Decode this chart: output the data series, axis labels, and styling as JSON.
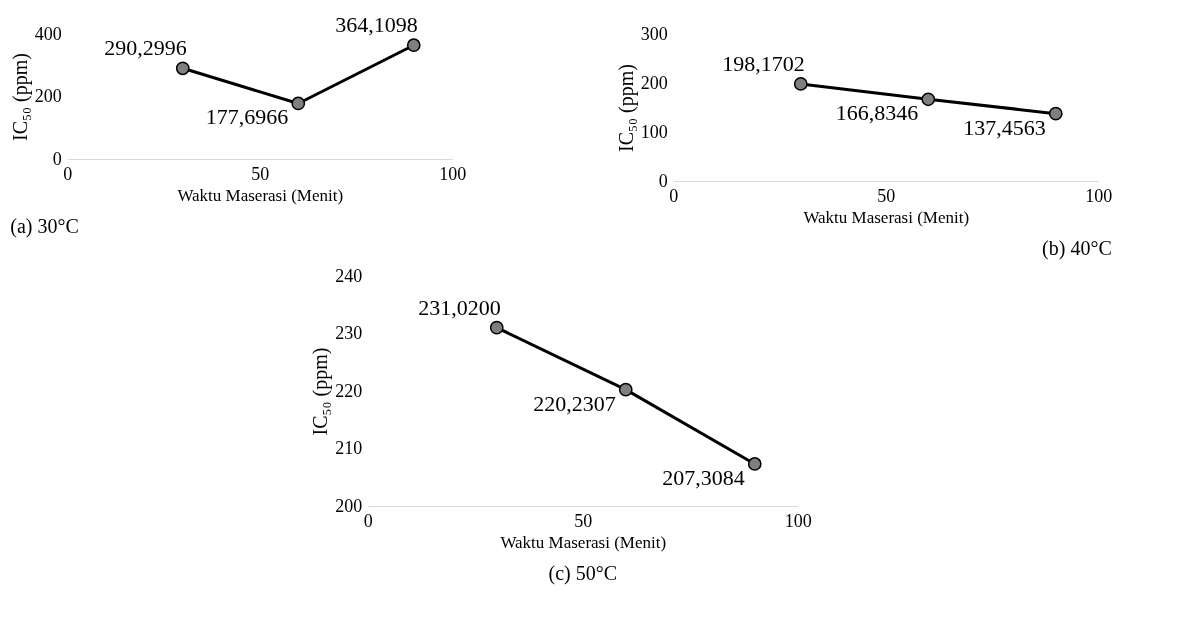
{
  "chart_data": [
    {
      "type": "line",
      "title": "(a)  30°C",
      "xlabel": "Waktu Maserasi (Menit)",
      "ylabel": "IC₅₀ (ppm)",
      "x": [
        30,
        60,
        90
      ],
      "series": [
        {
          "color": "#000000",
          "values": [
            290.2996,
            177.6966,
            364.1098
          ],
          "value_labels": [
            "290,2996",
            "177,6966",
            "364,1098"
          ]
        }
      ],
      "xlim": [
        0,
        100
      ],
      "xticks": [
        0,
        50,
        100
      ],
      "ylim": [
        0,
        400
      ],
      "yticks": [
        0,
        200,
        400
      ],
      "marker": "circle",
      "grid": false,
      "legend": false
    },
    {
      "type": "line",
      "title": "(b) 40°C",
      "xlabel": "Waktu Maserasi (Menit)",
      "ylabel": "IC₅₀ (ppm)",
      "x": [
        30,
        60,
        90
      ],
      "series": [
        {
          "color": "#000000",
          "values": [
            198.1702,
            166.8346,
            137.4563
          ],
          "value_labels": [
            "198,1702",
            "166,8346",
            "137,4563"
          ]
        }
      ],
      "xlim": [
        0,
        100
      ],
      "xticks": [
        0,
        50,
        100
      ],
      "ylim": [
        0,
        300
      ],
      "yticks": [
        0,
        100,
        200,
        300
      ],
      "marker": "circle",
      "grid": false,
      "legend": false
    },
    {
      "type": "line",
      "title": "(c) 50°C",
      "xlabel": "Waktu Maserasi (Menit)",
      "ylabel": "IC₅₀ (ppm)",
      "x": [
        30,
        60,
        90
      ],
      "series": [
        {
          "color": "#000000",
          "values": [
            231.02,
            220.2307,
            207.3084
          ],
          "value_labels": [
            "231,0200",
            "220,2307",
            "207,3084"
          ]
        }
      ],
      "xlim": [
        0,
        100
      ],
      "xticks": [
        0,
        50,
        100
      ],
      "ylim": [
        200,
        240
      ],
      "yticks": [
        200,
        210,
        220,
        230,
        240
      ],
      "marker": "circle",
      "grid": false,
      "legend": false
    }
  ]
}
